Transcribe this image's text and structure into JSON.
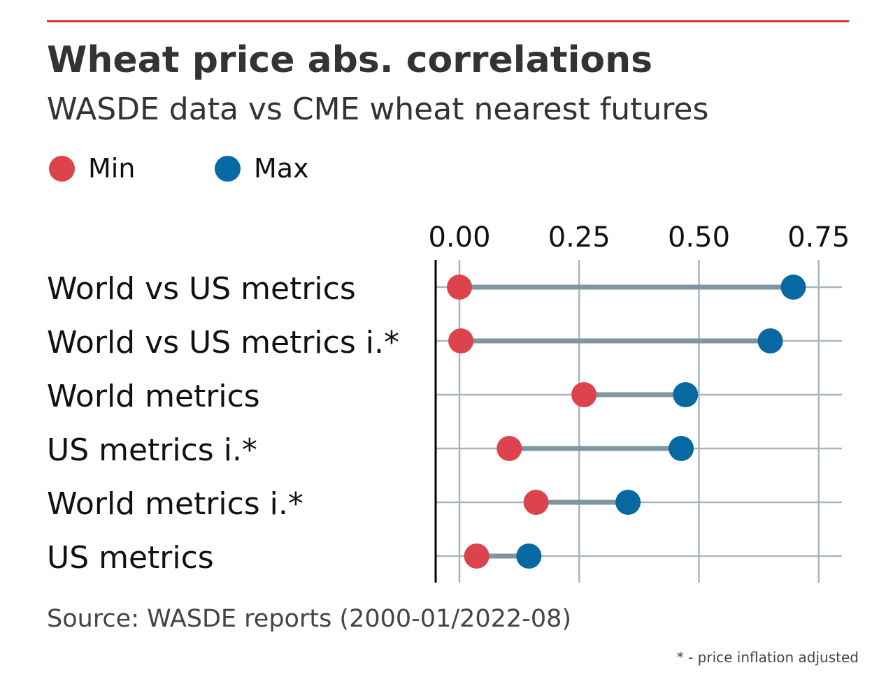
{
  "header": {
    "title": "Wheat price abs. correlations",
    "subtitle": "WASDE data vs CME wheat nearest futures"
  },
  "legend": {
    "min_label": "Min",
    "max_label": "Max"
  },
  "footer": {
    "source": "Source: WASDE reports (2000-01/2022-08)",
    "footnote": "* - price inflation adjusted"
  },
  "colors": {
    "accent_rule": "#d7303b",
    "min": "#dc434c",
    "max": "#0868a1",
    "connector": "#7f959f",
    "grid": "#a7b7bd"
  },
  "chart_data": {
    "type": "dumbbell",
    "title": "Wheat price abs. correlations",
    "subtitle": "WASDE data vs CME wheat nearest futures",
    "categories": [
      "World vs US metrics",
      "World vs US metrics i.*",
      "World metrics",
      "US metrics i.*",
      "World metrics i.*",
      "US metrics"
    ],
    "series": [
      {
        "name": "Min",
        "values": [
          0.0,
          0.003,
          0.26,
          0.104,
          0.16,
          0.036
        ]
      },
      {
        "name": "Max",
        "values": [
          0.697,
          0.649,
          0.472,
          0.463,
          0.352,
          0.145
        ]
      }
    ],
    "x_ticks": [
      "0.00",
      "0.25",
      "0.50",
      "0.75"
    ],
    "x_tick_values": [
      0,
      0.25,
      0.5,
      0.75
    ],
    "xlim": [
      -0.05,
      0.8
    ],
    "x_axis_position": "top",
    "grid": true,
    "legend_position": "top-left"
  }
}
